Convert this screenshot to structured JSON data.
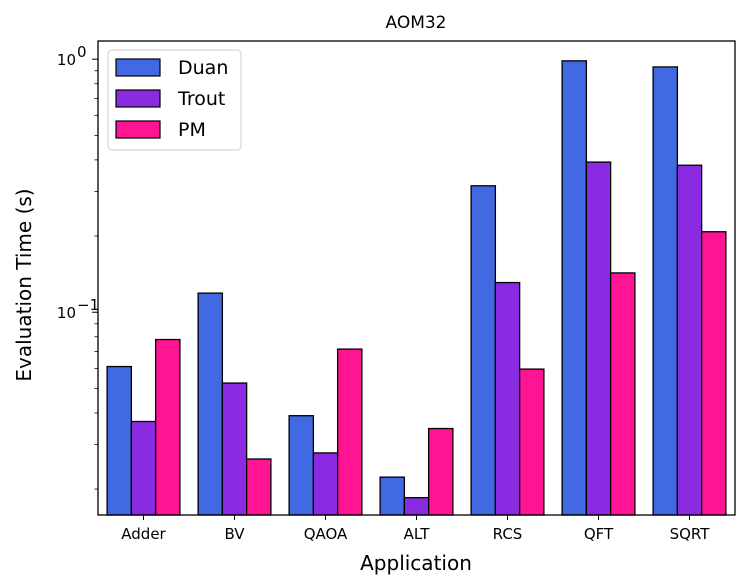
{
  "chart_data": {
    "type": "bar",
    "title": "AOM32",
    "xlabel": "Application",
    "ylabel": "Evaluation Time (s)",
    "yscale": "log",
    "ylim": [
      0.0158,
      1.18
    ],
    "ytick_labels": [
      {
        "value": 1,
        "base": "10",
        "exp": "0"
      },
      {
        "value": 0.1,
        "base": "10",
        "exp": "−1"
      }
    ],
    "categories": [
      "Adder",
      "BV",
      "QAOA",
      "ALT",
      "RCS",
      "QFT",
      "SQRT"
    ],
    "series": [
      {
        "name": "Duan",
        "color": "#4169e1",
        "values": [
          0.061,
          0.119,
          0.039,
          0.0223,
          0.316,
          0.985,
          0.932
        ]
      },
      {
        "name": "Trout",
        "color": "#8a2be2",
        "values": [
          0.037,
          0.0525,
          0.0278,
          0.0185,
          0.131,
          0.392,
          0.381
        ]
      },
      {
        "name": "PM",
        "color": "#ff1493",
        "values": [
          0.078,
          0.0263,
          0.0715,
          0.0347,
          0.0596,
          0.143,
          0.208
        ]
      }
    ],
    "legend_position": "top-left"
  }
}
